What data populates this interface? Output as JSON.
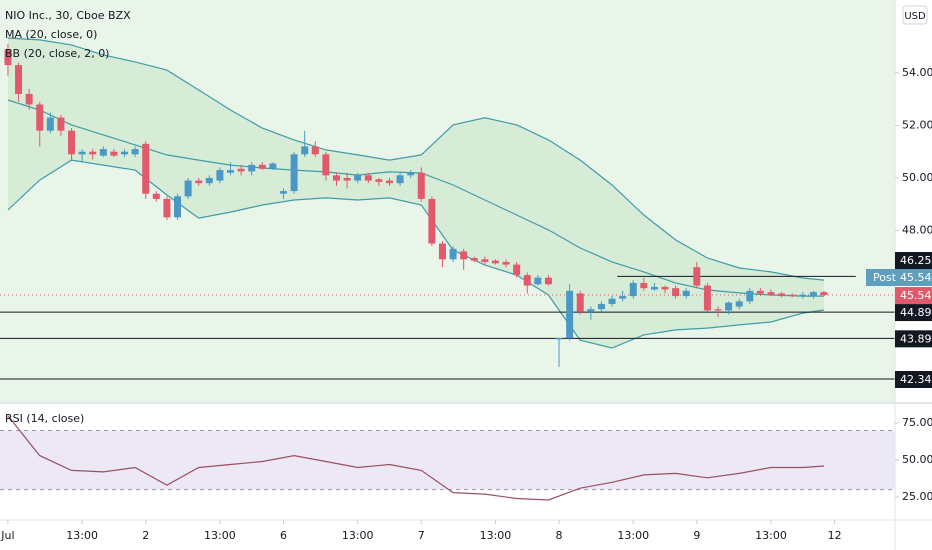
{
  "currency": "USD",
  "chart_data": [
    {
      "type": "candlestick",
      "title": "NIO Inc., 30, Cboe BZX",
      "indicators": [
        "MA (20, close, 0)",
        "BB (20, close, 2, 0)"
      ],
      "x": [
        0,
        1,
        2,
        3,
        4,
        5,
        6,
        7,
        8,
        9,
        10,
        11,
        12,
        13,
        14,
        15,
        16,
        17,
        18,
        19,
        20,
        21,
        22,
        23,
        24,
        25,
        26,
        27,
        28,
        29,
        30,
        31,
        32,
        33,
        34,
        35,
        36,
        37,
        38,
        39,
        40,
        41,
        42,
        43,
        44,
        45,
        46,
        47,
        48,
        49,
        50,
        51,
        52,
        53,
        54,
        55,
        56,
        57,
        58,
        59,
        60,
        61,
        62,
        63,
        64,
        65,
        66,
        67,
        68,
        69,
        70,
        71,
        72,
        73,
        74,
        75,
        76,
        77
      ],
      "open": [
        54.9,
        54.3,
        53.2,
        52.8,
        51.8,
        52.3,
        51.8,
        50.9,
        51.0,
        50.85,
        51.0,
        50.9,
        50.9,
        51.3,
        49.4,
        49.2,
        48.5,
        49.3,
        49.9,
        49.8,
        49.9,
        50.2,
        50.35,
        50.25,
        50.5,
        50.35,
        49.4,
        49.5,
        50.9,
        51.2,
        50.9,
        50.1,
        50.0,
        49.9,
        50.1,
        49.95,
        49.9,
        49.8,
        50.1,
        50.2,
        49.2,
        47.5,
        46.9,
        47.2,
        46.95,
        46.9,
        46.85,
        46.8,
        46.7,
        46.3,
        45.95,
        46.2,
        43.85,
        43.9,
        45.6,
        44.9,
        45.0,
        45.2,
        45.4,
        45.5,
        46.0,
        45.75,
        45.85,
        45.8,
        45.5,
        46.6,
        45.9,
        45.0,
        44.95,
        45.1,
        45.3,
        45.7,
        45.65,
        45.6,
        45.55,
        45.5,
        45.5,
        45.65
      ],
      "high": [
        55.1,
        54.4,
        53.4,
        52.9,
        52.5,
        52.4,
        51.9,
        51.1,
        51.1,
        51.2,
        51.1,
        51.1,
        51.2,
        51.4,
        49.5,
        49.3,
        49.4,
        50.0,
        50.0,
        50.1,
        50.4,
        50.6,
        50.5,
        50.6,
        50.6,
        50.6,
        49.6,
        51.0,
        51.8,
        51.4,
        51.0,
        50.2,
        50.2,
        50.2,
        50.2,
        50.0,
        50.0,
        50.2,
        50.3,
        50.4,
        49.3,
        47.6,
        47.4,
        47.3,
        47.0,
        47.0,
        46.9,
        46.9,
        46.8,
        46.4,
        46.3,
        46.3,
        43.9,
        45.95,
        45.7,
        45.1,
        45.3,
        45.5,
        45.7,
        46.1,
        46.2,
        46.0,
        45.9,
        45.9,
        45.8,
        46.8,
        46.0,
        45.1,
        45.3,
        45.4,
        45.8,
        45.8,
        45.75,
        45.65,
        45.6,
        45.65,
        45.7,
        45.7
      ],
      "low": [
        53.9,
        52.9,
        52.6,
        51.2,
        51.7,
        51.6,
        50.7,
        50.6,
        50.7,
        50.8,
        50.8,
        50.8,
        50.8,
        49.2,
        49.1,
        48.4,
        48.4,
        49.2,
        49.7,
        49.7,
        49.8,
        50.1,
        50.1,
        50.1,
        50.3,
        50.3,
        49.2,
        49.4,
        50.8,
        50.8,
        49.9,
        49.7,
        49.6,
        49.8,
        49.8,
        49.7,
        49.7,
        49.7,
        50.0,
        49.1,
        47.4,
        46.6,
        46.8,
        46.5,
        46.8,
        46.7,
        46.7,
        46.6,
        46.2,
        45.6,
        45.9,
        45.9,
        42.8,
        43.8,
        44.8,
        44.6,
        44.9,
        45.1,
        45.3,
        45.4,
        45.7,
        45.7,
        45.6,
        45.4,
        45.4,
        45.8,
        44.9,
        44.7,
        44.8,
        45.0,
        45.2,
        45.5,
        45.5,
        45.45,
        45.45,
        45.4,
        45.4,
        45.5
      ],
      "close": [
        54.3,
        53.2,
        52.8,
        51.8,
        52.3,
        51.8,
        50.9,
        51.0,
        50.9,
        51.1,
        50.85,
        51.0,
        51.1,
        49.4,
        49.2,
        48.5,
        49.3,
        49.9,
        49.8,
        50.0,
        50.3,
        50.3,
        50.25,
        50.5,
        50.35,
        50.55,
        49.5,
        50.9,
        51.2,
        50.9,
        50.1,
        49.9,
        49.9,
        50.1,
        49.9,
        49.85,
        49.8,
        50.1,
        50.2,
        49.2,
        47.5,
        46.9,
        47.3,
        46.9,
        46.85,
        46.8,
        46.75,
        46.7,
        46.3,
        45.9,
        46.2,
        45.95,
        43.9,
        45.7,
        44.9,
        45.0,
        45.2,
        45.4,
        45.5,
        46.0,
        45.8,
        45.85,
        45.75,
        45.5,
        45.7,
        45.9,
        44.95,
        44.95,
        45.25,
        45.3,
        45.7,
        45.6,
        45.55,
        45.5,
        45.5,
        45.55,
        45.65,
        45.54
      ],
      "up_color": "#4b98c6",
      "down_color": "#e15a6b",
      "bands": {
        "x": [
          0,
          3,
          6,
          9,
          12,
          15,
          18,
          21,
          24,
          27,
          30,
          33,
          36,
          39,
          42,
          45,
          48,
          51,
          54,
          57,
          60,
          63,
          66,
          69,
          72,
          75,
          77
        ],
        "upper": [
          55.33,
          55.26,
          55.07,
          54.69,
          54.42,
          54.11,
          53.35,
          52.59,
          51.9,
          51.45,
          51.07,
          50.88,
          50.68,
          50.88,
          52.02,
          52.29,
          52.02,
          51.45,
          50.68,
          49.73,
          48.59,
          47.64,
          46.95,
          46.57,
          46.42,
          46.19,
          46.11
        ],
        "basis": [
          52.97,
          52.59,
          52.02,
          51.64,
          51.26,
          50.88,
          50.68,
          50.49,
          50.38,
          50.3,
          50.23,
          50.11,
          50.23,
          50.19,
          49.73,
          49.16,
          48.59,
          48.02,
          47.33,
          46.8,
          46.42,
          46.0,
          45.73,
          45.62,
          45.54,
          45.5,
          45.5
        ],
        "lower": [
          48.78,
          49.92,
          50.68,
          50.49,
          50.3,
          49.35,
          48.47,
          48.7,
          48.97,
          49.16,
          49.24,
          49.16,
          49.24,
          48.97,
          47.25,
          46.68,
          46.3,
          45.54,
          43.82,
          43.52,
          44.02,
          44.21,
          44.28,
          44.4,
          44.51,
          44.85,
          44.97
        ],
        "color": "#3f9ca8",
        "fill": "#cfe8cf"
      },
      "last_price": 45.54,
      "post_label": "Post",
      "post_price": 45.54,
      "post_color": "#5d9fbc",
      "levels": [
        {
          "value": 46.25,
          "xrange": [
            57.5,
            80
          ]
        },
        {
          "value": 44.89
        },
        {
          "value": 43.89
        },
        {
          "value": 42.34
        }
      ],
      "xlim": [
        -0.75,
        83.7
      ],
      "ylim": [
        41.54,
        56.78
      ],
      "yticks": [
        {
          "value": 48,
          "label": "48.00"
        },
        {
          "value": 50,
          "label": "50.00"
        },
        {
          "value": 52,
          "label": "52.00"
        },
        {
          "value": 54,
          "label": "54.00"
        }
      ]
    },
    {
      "type": "line",
      "title": "RSI (14, close)",
      "x": [
        0,
        3,
        6,
        9,
        12,
        15,
        18,
        21,
        24,
        27,
        30,
        33,
        36,
        39,
        42,
        45,
        48,
        51,
        54,
        57,
        60,
        63,
        66,
        69,
        72,
        75,
        77
      ],
      "values": [
        80,
        53,
        43,
        42,
        45,
        33,
        45,
        47,
        49,
        53,
        49,
        45,
        47,
        43,
        28,
        27,
        24,
        23,
        31,
        35,
        40,
        41,
        38,
        41,
        45,
        45,
        46
      ],
      "color": "#9c4f62",
      "band": [
        30,
        70
      ],
      "ylim": [
        9.5,
        87.2
      ],
      "yticks": [
        {
          "value": 25,
          "label": "25.00"
        },
        {
          "value": 50,
          "label": "50.00"
        },
        {
          "value": 75,
          "label": "75.00"
        }
      ],
      "xlim": [
        -0.75,
        83.7
      ],
      "xticks": [
        {
          "value": 0,
          "label": "Jul"
        },
        {
          "value": 7,
          "label": "13:00"
        },
        {
          "value": 13,
          "label": "2"
        },
        {
          "value": 20,
          "label": "13:00"
        },
        {
          "value": 26,
          "label": "6"
        },
        {
          "value": 33,
          "label": "13:00"
        },
        {
          "value": 39,
          "label": "7"
        },
        {
          "value": 46,
          "label": "13:00"
        },
        {
          "value": 52,
          "label": "8"
        },
        {
          "value": 59,
          "label": "13:00"
        },
        {
          "value": 65,
          "label": "9"
        },
        {
          "value": 72,
          "label": "13:00"
        },
        {
          "value": 78,
          "label": "12"
        }
      ]
    }
  ]
}
